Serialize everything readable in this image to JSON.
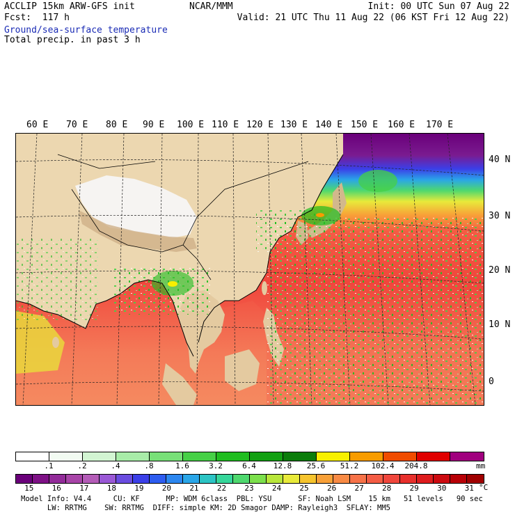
{
  "header": {
    "left_line1": "ACCLIP 15km ARW-GFS init",
    "left_line2": "Fcst:  117 h",
    "center": "NCAR/MMM",
    "right_line1": "Init: 00 UTC Sun 07 Aug 22",
    "right_line2": "Valid: 21 UTC Thu 11 Aug 22 (06 KST Fri 12 Aug 22)"
  },
  "fields": {
    "sst_label": "Ground/sea-surface temperature",
    "precip_label": "Total precip. in past 3 h"
  },
  "axes": {
    "lon_labels": [
      "60 E",
      "70 E",
      "80 E",
      "90 E",
      "100 E",
      "110 E",
      "120 E",
      "130 E",
      "140 E",
      "150 E",
      "160 E",
      "170 E"
    ],
    "lat_labels": [
      "40 N",
      "30 N",
      "20 N",
      "10 N",
      "0"
    ]
  },
  "precip_colorbar": {
    "labels": [
      ".1",
      ".2",
      ".4",
      ".8",
      "1.6",
      "3.2",
      "6.4",
      "12.8",
      "25.6",
      "51.2",
      "102.4",
      "204.8"
    ],
    "unit": "mm",
    "colors": [
      "#ffffff",
      "#f2fbf2",
      "#d2f5d2",
      "#a8eca8",
      "#78e078",
      "#46d046",
      "#20bd20",
      "#12a012",
      "#0a7c0a",
      "#f8f000",
      "#f89c00",
      "#f04c00",
      "#e00000",
      "#a0007e"
    ]
  },
  "temp_colorbar": {
    "labels": [
      "15",
      "16",
      "17",
      "18",
      "19",
      "20",
      "21",
      "22",
      "23",
      "24",
      "25",
      "26",
      "27",
      "28",
      "29",
      "30",
      "31"
    ],
    "unit": "°C",
    "colors": [
      "#6a007a",
      "#7e1186",
      "#922b99",
      "#a844a8",
      "#b45cb8",
      "#9a58d6",
      "#6a4ce0",
      "#3b3fe8",
      "#2d5cf0",
      "#2c87f0",
      "#2aa6e8",
      "#2cc4c4",
      "#36d69a",
      "#4ed86e",
      "#7ce04c",
      "#b8e63a",
      "#e8ea3a",
      "#f6c42e",
      "#f8a038",
      "#f88a44",
      "#f77248",
      "#f45c44",
      "#f0463c",
      "#e8302c",
      "#de1c1e",
      "#cc0a10",
      "#b80006",
      "#a00000"
    ]
  },
  "footer": {
    "line1": "Model Info: V4.4     CU: KF      MP: WDM 6class  PBL: YSU      SF: Noah LSM    15 km   51 levels   90 sec",
    "line2": "      LW: RRTMG    SW: RRTMG  DIFF: simple KM: 2D Smagor DAMP: Rayleigh3  SFLAY: MM5"
  }
}
